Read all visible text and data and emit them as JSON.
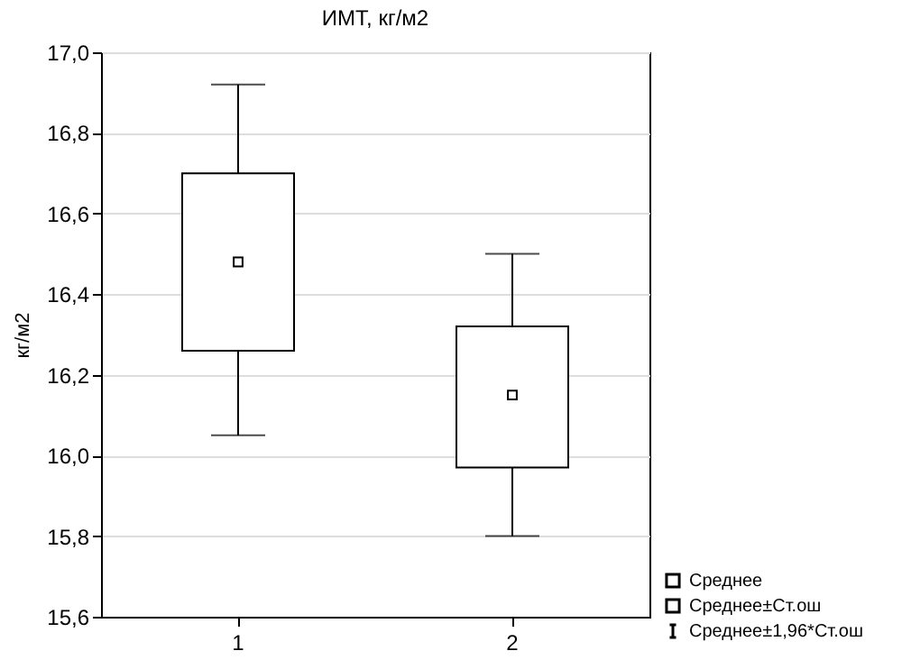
{
  "chart_data": {
    "type": "box",
    "title": "ИМТ, кг/м2",
    "ylabel": "кг/м2",
    "categories": [
      "1",
      "2"
    ],
    "boxes": [
      {
        "low": 16.05,
        "q1": 16.26,
        "q3": 16.7,
        "high": 16.92,
        "mean": 16.48
      },
      {
        "low": 15.8,
        "q1": 15.97,
        "q3": 16.32,
        "high": 16.5,
        "mean": 16.15
      }
    ],
    "ylim": [
      15.6,
      17.0
    ],
    "yticks": [
      {
        "value": 15.6,
        "label": "15,6"
      },
      {
        "value": 15.8,
        "label": "15,8"
      },
      {
        "value": 16.0,
        "label": "16,0"
      },
      {
        "value": 16.2,
        "label": "16,2"
      },
      {
        "value": 16.4,
        "label": "16,4"
      },
      {
        "value": 16.6,
        "label": "16,6"
      },
      {
        "value": 16.8,
        "label": "16,8"
      },
      {
        "value": 17.0,
        "label": "17,0"
      }
    ],
    "grid": "y",
    "annotations": [
      "Среднее",
      "Среднее±Ст.ош",
      "Среднее±1,96*Ст.ош"
    ]
  }
}
